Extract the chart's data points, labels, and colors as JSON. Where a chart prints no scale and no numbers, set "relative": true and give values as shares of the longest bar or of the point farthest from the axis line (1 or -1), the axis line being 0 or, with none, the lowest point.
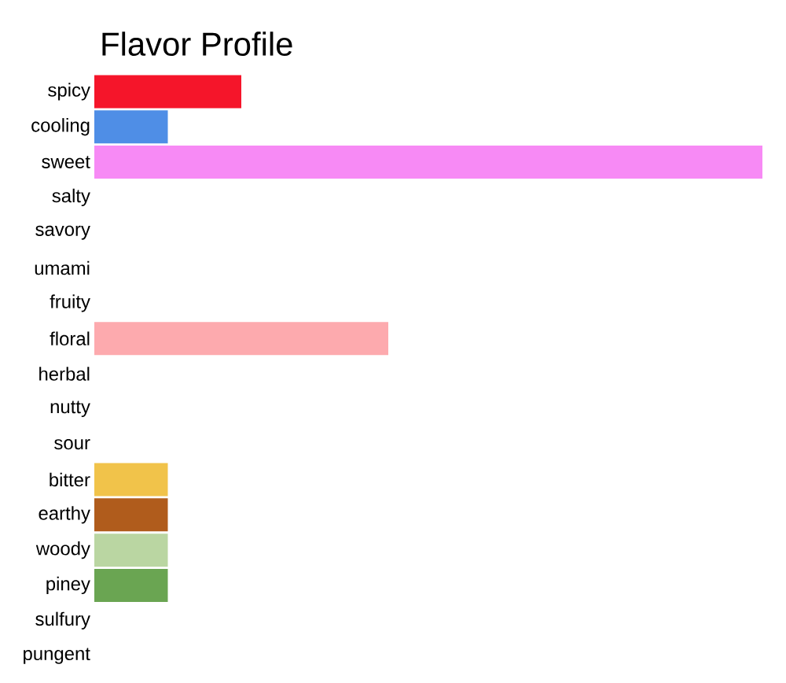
{
  "chart_data": {
    "type": "bar",
    "orientation": "horizontal",
    "relative": true,
    "title": "Flavor Profile",
    "categories": [
      "spicy",
      "cooling",
      "sweet",
      "salty",
      "savory",
      "umami",
      "fruity",
      "floral",
      "herbal",
      "nutty",
      "sour",
      "bitter",
      "earthy",
      "woody",
      "piney",
      "sulfury",
      "pungent"
    ],
    "values": [
      0.22,
      0.11,
      1,
      0,
      0,
      0,
      0,
      0.44,
      0,
      0,
      0,
      0.11,
      0.11,
      0.11,
      0.11,
      0,
      0
    ],
    "colors": [
      "#f5152a",
      "#4f8ee6",
      "#f78af5",
      "#ffffff",
      "#ffffff",
      "#ffffff",
      "#ffffff",
      "#fdaaae",
      "#ffffff",
      "#ffffff",
      "#ffffff",
      "#f1c34a",
      "#b05c1c",
      "#bad6a2",
      "#6aa552",
      "#ffffff",
      "#ffffff"
    ]
  }
}
